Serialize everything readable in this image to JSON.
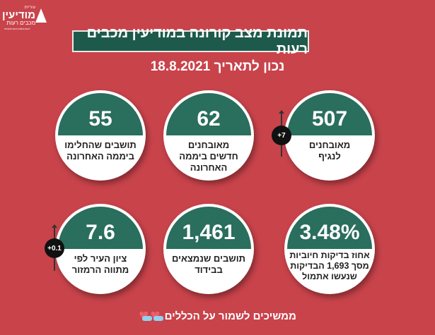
{
  "logo": {
    "line1": "עיריית",
    "line2": "מודיעין",
    "line3": "מכבים רעות",
    "line4": "MODIIN MACCABIM REUT"
  },
  "header": {
    "title": "תמונת מצב קורונה במודיעין מכבים רעות",
    "date": "נכון לתאריך 18.8.2021"
  },
  "stats": [
    {
      "value": "507",
      "label1": "מאובחנים",
      "label2": "לנגיף",
      "label3": "",
      "change": "+7"
    },
    {
      "value": "62",
      "label1": "מאובחנים",
      "label2": "חדשים ביממה",
      "label3": "האחרונה"
    },
    {
      "value": "55",
      "label1": "תושבים שהחלימו",
      "label2": "ביממה האחרונה",
      "label3": ""
    },
    {
      "value": "3.48%",
      "label1": "אחוז בדיקות חיוביות",
      "label2": "מסך 1,693 הבדיקות",
      "label3": "שנעשו אתמול"
    },
    {
      "value": "1,461",
      "label1": "תושבים שנמצאים",
      "label2": "בבידוד",
      "label3": ""
    },
    {
      "value": "7.6",
      "label1": "ציון העיר לפי",
      "label2": "מתווה הרמזור",
      "label3": "",
      "change": "+0.1"
    }
  ],
  "footer": {
    "text": "ממשיכים לשמור על הכללים"
  }
}
